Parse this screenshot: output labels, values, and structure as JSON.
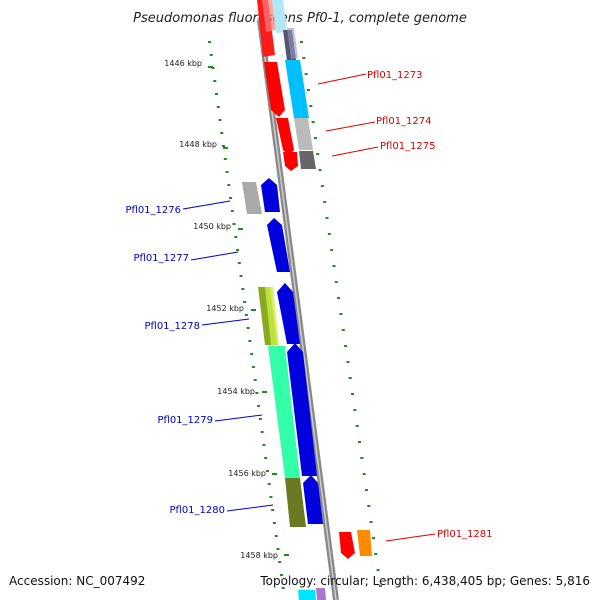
{
  "title": "Pseudomonas fluorescens Pf0-1, complete genome",
  "footer": {
    "accession": "Accession: NC_007492",
    "summary": "Topology: circular; Length: 6,438,405 bp; Genes: 5,816"
  },
  "ruler_ticks": [
    {
      "label": "1446 kbp"
    },
    {
      "label": "1448 kbp"
    },
    {
      "label": "1450 kbp"
    },
    {
      "label": "1452 kbp"
    },
    {
      "label": "1454 kbp"
    },
    {
      "label": "1456 kbp"
    },
    {
      "label": "1458 kbp"
    }
  ],
  "gene_labels_right": [
    {
      "name": "Pfl01_1273",
      "color": "#dd0000"
    },
    {
      "name": "Pfl01_1274",
      "color": "#dd0000"
    },
    {
      "name": "Pfl01_1275",
      "color": "#dd0000"
    },
    {
      "name": "Pfl01_1281",
      "color": "#dd0000"
    }
  ],
  "gene_labels_left": [
    {
      "name": "Pfl01_1276",
      "color": "#0000cc"
    },
    {
      "name": "Pfl01_1277",
      "color": "#0000cc"
    },
    {
      "name": "Pfl01_1278",
      "color": "#0000cc"
    },
    {
      "name": "Pfl01_1279",
      "color": "#0000cc"
    },
    {
      "name": "Pfl01_1280",
      "color": "#0000cc"
    }
  ],
  "colors": {
    "forward_strand": "#ff0000",
    "reverse_strand": "#0000dd",
    "backbone": "#888888",
    "gc_dots": "#228b22"
  }
}
